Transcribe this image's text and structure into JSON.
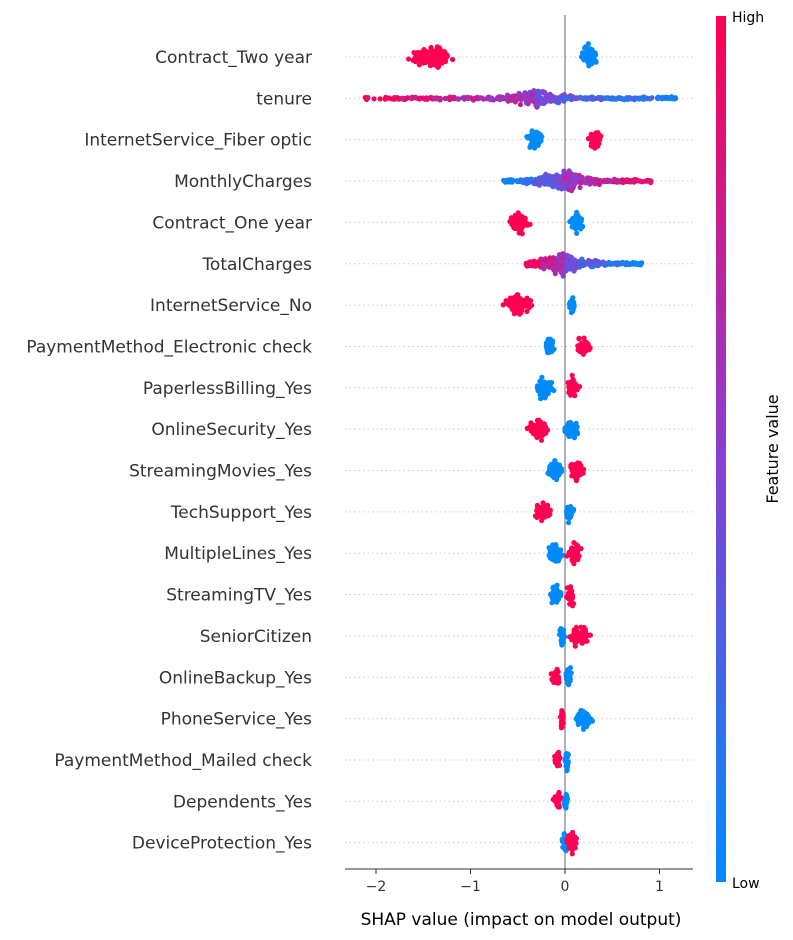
{
  "chart_data": {
    "type": "scatter",
    "subtype": "shap-beeswarm",
    "xlabel": "SHAP value (impact on model output)",
    "xlim": [
      -2.3,
      1.35
    ],
    "xticks": [
      {
        "value": -2,
        "label": "−2"
      },
      {
        "value": -1,
        "label": "−1"
      },
      {
        "value": 0,
        "label": "0"
      },
      {
        "value": 1,
        "label": "1"
      }
    ],
    "colorbar": {
      "title": "Feature value",
      "high_label": "High",
      "low_label": "Low",
      "high_color": "#ff0052",
      "low_color": "#008bfb"
    },
    "grid": "dotted horizontal per feature",
    "zero_line": true,
    "features": [
      {
        "name": "Contract_Two year",
        "kind": "binary",
        "low": {
          "min": 0.05,
          "max": 0.34,
          "center": 0.25,
          "width": 0.29
        },
        "high": {
          "min": -1.78,
          "max": -1.06,
          "center": -1.42,
          "width": 0.72
        }
      },
      {
        "name": "tenure",
        "kind": "continuous",
        "min": -2.15,
        "max": 1.2,
        "center": -0.3
      },
      {
        "name": "InternetService_Fiber optic",
        "kind": "binary",
        "low": {
          "min": -0.45,
          "max": -0.18,
          "center": -0.32,
          "width": 0.27
        },
        "high": {
          "min": 0.2,
          "max": 0.42,
          "center": 0.32,
          "width": 0.22
        }
      },
      {
        "name": "MonthlyCharges",
        "kind": "continuous_reversed",
        "min": -0.65,
        "max": 0.92,
        "center": 0.0
      },
      {
        "name": "Contract_One year",
        "kind": "binary",
        "low": {
          "min": 0.03,
          "max": 0.24,
          "center": 0.12,
          "width": 0.21
        },
        "high": {
          "min": -0.7,
          "max": -0.32,
          "center": -0.48,
          "width": 0.38
        }
      },
      {
        "name": "TotalCharges",
        "kind": "continuous",
        "min": -0.42,
        "max": 0.82,
        "center": -0.02
      },
      {
        "name": "InternetService_No",
        "kind": "binary",
        "low": {
          "min": 0.02,
          "max": 0.13,
          "center": 0.08,
          "width": 0.11
        },
        "high": {
          "min": -0.75,
          "max": -0.27,
          "center": -0.5,
          "width": 0.48
        }
      },
      {
        "name": "PaymentMethod_Electronic check",
        "kind": "binary",
        "low": {
          "min": -0.25,
          "max": -0.08,
          "center": -0.16,
          "width": 0.17
        },
        "high": {
          "min": 0.07,
          "max": 0.33,
          "center": 0.2,
          "width": 0.26
        }
      },
      {
        "name": "PaperlessBilling_Yes",
        "kind": "binary",
        "low": {
          "min": -0.38,
          "max": -0.05,
          "center": -0.22,
          "width": 0.33
        },
        "high": {
          "min": -0.03,
          "max": 0.18,
          "center": 0.08,
          "width": 0.21
        }
      },
      {
        "name": "OnlineSecurity_Yes",
        "kind": "binary",
        "low": {
          "min": 0.0,
          "max": 0.28,
          "center": 0.07,
          "width": 0.28
        },
        "high": {
          "min": -0.48,
          "max": -0.1,
          "center": -0.28,
          "width": 0.38
        }
      },
      {
        "name": "StreamingMovies_Yes",
        "kind": "binary",
        "low": {
          "min": -0.3,
          "max": 0.0,
          "center": -0.1,
          "width": 0.3
        },
        "high": {
          "min": 0.02,
          "max": 0.3,
          "center": 0.12,
          "width": 0.28
        }
      },
      {
        "name": "TechSupport_Yes",
        "kind": "binary",
        "low": {
          "min": -0.02,
          "max": 0.12,
          "center": 0.05,
          "width": 0.14
        },
        "high": {
          "min": -0.38,
          "max": -0.08,
          "center": -0.23,
          "width": 0.3
        }
      },
      {
        "name": "MultipleLines_Yes",
        "kind": "binary",
        "low": {
          "min": -0.28,
          "max": 0.0,
          "center": -0.1,
          "width": 0.28
        },
        "high": {
          "min": 0.02,
          "max": 0.24,
          "center": 0.1,
          "width": 0.22
        }
      },
      {
        "name": "StreamingTV_Yes",
        "kind": "binary",
        "low": {
          "min": -0.2,
          "max": 0.0,
          "center": -0.1,
          "width": 0.2
        },
        "high": {
          "min": 0.0,
          "max": 0.15,
          "center": 0.06,
          "width": 0.15
        }
      },
      {
        "name": "SeniorCitizen",
        "kind": "binary",
        "low": {
          "min": -0.08,
          "max": 0.02,
          "center": -0.03,
          "width": 0.1
        },
        "high": {
          "min": 0.02,
          "max": 0.37,
          "center": 0.15,
          "width": 0.35
        }
      },
      {
        "name": "OnlineBackup_Yes",
        "kind": "binary",
        "low": {
          "min": -0.02,
          "max": 0.1,
          "center": 0.04,
          "width": 0.12
        },
        "high": {
          "min": -0.2,
          "max": 0.0,
          "center": -0.1,
          "width": 0.2
        }
      },
      {
        "name": "PhoneService_Yes",
        "kind": "binary",
        "low": {
          "min": 0.05,
          "max": 0.37,
          "center": 0.2,
          "width": 0.32
        },
        "high": {
          "min": -0.06,
          "max": 0.0,
          "center": -0.03,
          "width": 0.06
        }
      },
      {
        "name": "PaymentMethod_Mailed check",
        "kind": "binary",
        "low": {
          "min": -0.01,
          "max": 0.05,
          "center": 0.02,
          "width": 0.06
        },
        "high": {
          "min": -0.15,
          "max": -0.02,
          "center": -0.08,
          "width": 0.13
        }
      },
      {
        "name": "Dependents_Yes",
        "kind": "binary",
        "low": {
          "min": -0.02,
          "max": 0.05,
          "center": 0.01,
          "width": 0.07
        },
        "high": {
          "min": -0.15,
          "max": -0.02,
          "center": -0.08,
          "width": 0.13
        }
      },
      {
        "name": "DeviceProtection_Yes",
        "kind": "binary",
        "low": {
          "min": -0.05,
          "max": 0.05,
          "center": 0.0,
          "width": 0.1
        },
        "high": {
          "min": 0.0,
          "max": 0.2,
          "center": 0.08,
          "width": 0.2
        }
      }
    ]
  }
}
